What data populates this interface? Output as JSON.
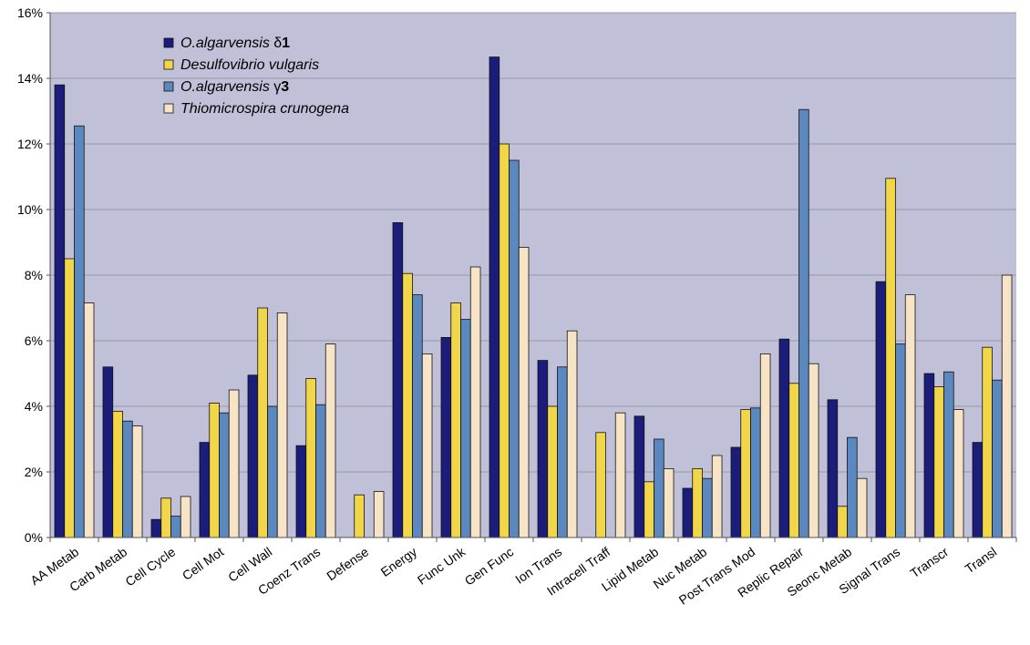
{
  "chart_data": {
    "type": "bar",
    "title": "",
    "xlabel": "",
    "ylabel": "",
    "ylim": [
      0,
      16
    ],
    "yticks": [
      "0%",
      "2%",
      "4%",
      "6%",
      "8%",
      "10%",
      "12%",
      "14%",
      "16%"
    ],
    "grid": "horizontal",
    "legend_position": "top-left",
    "plot_bg": "#c0c0d8",
    "categories": [
      "AA Metab",
      "Carb Metab",
      "Cell Cycle",
      "Cell Mot",
      "Cell Wall",
      "Coenz Trans",
      "Defense",
      "Energy",
      "Func Unk",
      "Gen Func",
      "Ion Trans",
      "Intracell Traff",
      "Lipid Metab",
      "Nuc Metab",
      "Post Trans Mod",
      "Replic Repair",
      "Seonc Metab",
      "Signal Trans",
      "Transcr",
      "Transl"
    ],
    "series": [
      {
        "legend_italic": "O.algarvensis ",
        "legend_greek": "δ",
        "legend_bold": "1",
        "color": "#1c1c7a",
        "values": [
          13.8,
          5.2,
          0.55,
          2.9,
          4.95,
          2.8,
          0,
          9.6,
          6.1,
          14.65,
          5.4,
          0,
          3.7,
          1.5,
          2.75,
          6.05,
          4.2,
          7.8,
          5.0,
          2.9
        ]
      },
      {
        "legend_italic": "Desulfovibrio vulgaris",
        "legend_greek": "",
        "legend_bold": "",
        "color": "#f2d64a",
        "values": [
          8.5,
          3.85,
          1.2,
          4.1,
          7.0,
          4.85,
          1.3,
          8.05,
          7.15,
          12.0,
          4.0,
          3.2,
          1.7,
          2.1,
          3.9,
          4.7,
          0.95,
          10.95,
          4.6,
          5.8
        ]
      },
      {
        "legend_italic": "O.algarvensis ",
        "legend_greek": "γ",
        "legend_bold": "3",
        "color": "#5b88be",
        "values": [
          12.55,
          3.55,
          0.65,
          3.8,
          4.0,
          4.05,
          0,
          7.4,
          6.65,
          11.5,
          5.2,
          0,
          3.0,
          1.8,
          3.95,
          13.05,
          3.05,
          5.9,
          5.05,
          4.8
        ]
      },
      {
        "legend_italic": "Thiomicrospira crunogena",
        "legend_greek": "",
        "legend_bold": "",
        "color": "#f7e4c6",
        "values": [
          7.15,
          3.4,
          1.25,
          4.5,
          6.85,
          5.9,
          1.4,
          5.6,
          8.25,
          8.85,
          6.3,
          3.8,
          2.1,
          2.5,
          5.6,
          5.3,
          1.8,
          7.4,
          3.9,
          8.0
        ]
      }
    ]
  }
}
